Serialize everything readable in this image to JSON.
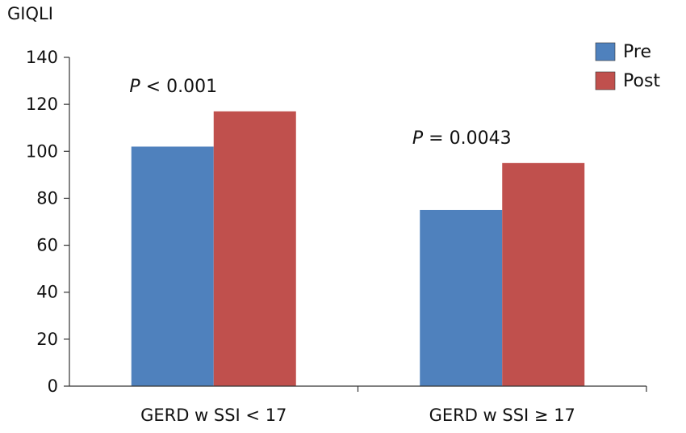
{
  "chart_data": {
    "type": "bar",
    "ylabel": "GIQLI",
    "xlabel": "",
    "ylim": [
      0,
      140
    ],
    "yticks": [
      0,
      20,
      40,
      60,
      80,
      100,
      120,
      140
    ],
    "categories": [
      "GERD w SSI < 17",
      "GERD w SSI ≥ 17"
    ],
    "series": [
      {
        "name": "Pre",
        "color": "#4f81bd",
        "values": [
          102,
          75
        ]
      },
      {
        "name": "Post",
        "color": "#c0504d",
        "values": [
          117,
          95
        ]
      }
    ],
    "legend_position": "top-right",
    "grid": false,
    "annotations": [
      {
        "category_index": 0,
        "p_symbol": "P",
        "text": " < 0.001"
      },
      {
        "category_index": 1,
        "p_symbol": "P",
        "text": " = 0.0043"
      }
    ]
  }
}
